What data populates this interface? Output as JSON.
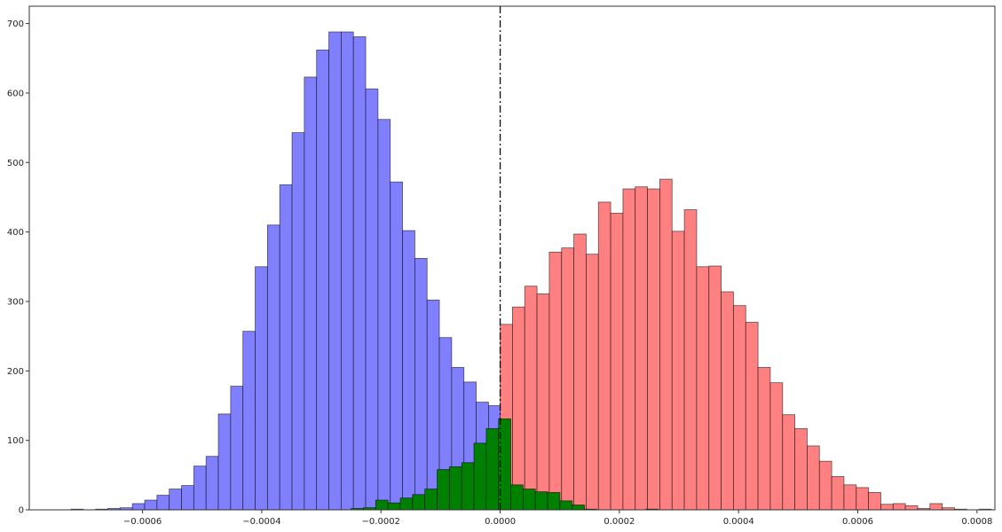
{
  "chart_data": {
    "type": "bar",
    "xlim": [
      -0.00079,
      0.00083
    ],
    "ylim": [
      0,
      725
    ],
    "x_ticks": [
      {
        "value": -0.0006,
        "label": "−0.0006"
      },
      {
        "value": -0.0004,
        "label": "−0.0004"
      },
      {
        "value": -0.0002,
        "label": "−0.0002"
      },
      {
        "value": 0.0,
        "label": "0.0000"
      },
      {
        "value": 0.0002,
        "label": "0.0002"
      },
      {
        "value": 0.0004,
        "label": "0.0004"
      },
      {
        "value": 0.0006,
        "label": "0.0006"
      },
      {
        "value": 0.0008,
        "label": "0.0008"
      }
    ],
    "y_ticks": [
      {
        "value": 0,
        "label": "0"
      },
      {
        "value": 100,
        "label": "100"
      },
      {
        "value": 200,
        "label": "200"
      },
      {
        "value": 300,
        "label": "300"
      },
      {
        "value": 400,
        "label": "400"
      },
      {
        "value": 500,
        "label": "500"
      },
      {
        "value": 600,
        "label": "600"
      },
      {
        "value": 700,
        "label": "700"
      }
    ],
    "grid": false,
    "reference_line": {
      "x": 0.0,
      "style": "dash-dot",
      "color": "#000000"
    },
    "series": [
      {
        "color": "#8080ff",
        "bin_start": -0.00072,
        "bin_width": 2.06e-05,
        "values": [
          1,
          0,
          1,
          2,
          3,
          9,
          14,
          21,
          30,
          35,
          63,
          77,
          138,
          178,
          257,
          350,
          410,
          468,
          543,
          623,
          662,
          688,
          688,
          681,
          606,
          562,
          472,
          402,
          362,
          302,
          248,
          205,
          184,
          155,
          150,
          168,
          200,
          208,
          225
        ]
      },
      {
        "color": "#ff8080",
        "bin_start": 0.0,
        "bin_width": 2.06e-05,
        "values": [
          267,
          292,
          322,
          311,
          371,
          377,
          397,
          368,
          443,
          427,
          462,
          465,
          462,
          476,
          401,
          432,
          350,
          351,
          314,
          294,
          270,
          205,
          183,
          137,
          117,
          92,
          70,
          48,
          36,
          32,
          25,
          8,
          9,
          6,
          2,
          9,
          3,
          1,
          0,
          1
        ]
      },
      {
        "color": "#008000",
        "bin_start": -0.00025,
        "bin_width": 2.06e-05,
        "values": [
          2,
          3,
          14,
          10,
          17,
          22,
          30,
          58,
          62,
          68,
          96,
          117,
          131,
          36,
          30,
          26,
          25,
          13,
          7,
          1,
          0,
          0,
          0,
          0,
          1
        ]
      }
    ]
  }
}
